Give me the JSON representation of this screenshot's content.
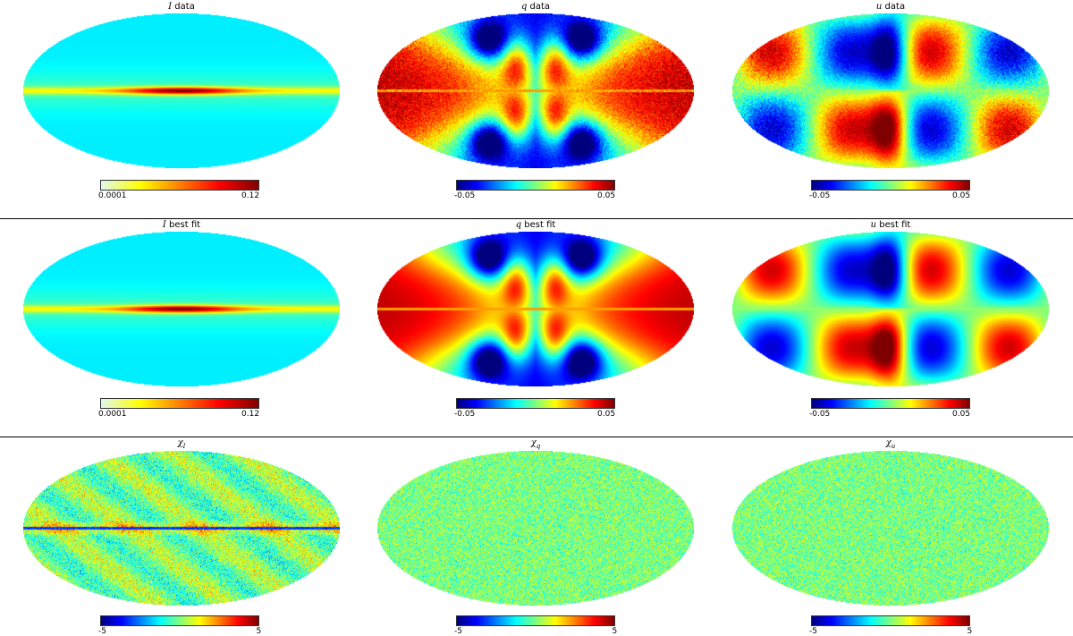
{
  "colors": {
    "jet": [
      "#00007f",
      "#0000ff",
      "#007fff",
      "#00ffff",
      "#7fff7f",
      "#ffff00",
      "#ff7f00",
      "#ff0000",
      "#7f0000"
    ],
    "i_scale": [
      "#e0f8f0",
      "#ffff00",
      "#ff7f00",
      "#ff0000",
      "#7f0000"
    ]
  },
  "chart_data": [
    {
      "type": "heatmap",
      "projection": "mollweide",
      "title_sym": "I",
      "title_rest": " data",
      "field": "I",
      "pattern": "i_data",
      "colorbar": {
        "min": "0.0001",
        "max": "0.12",
        "scale": "i"
      },
      "clim": [
        0.0001,
        0.12
      ]
    },
    {
      "type": "heatmap",
      "projection": "mollweide",
      "title_sym": "q",
      "title_rest": " data",
      "field": "q",
      "pattern": "q_data",
      "colorbar": {
        "min": "-0.05",
        "max": "0.05",
        "scale": "jet"
      },
      "clim": [
        -0.05,
        0.05
      ]
    },
    {
      "type": "heatmap",
      "projection": "mollweide",
      "title_sym": "u",
      "title_rest": " data",
      "field": "u",
      "pattern": "u_data",
      "colorbar": {
        "min": "-0.05",
        "max": "0.05",
        "scale": "jet"
      },
      "clim": [
        -0.05,
        0.05
      ]
    },
    {
      "type": "heatmap",
      "projection": "mollweide",
      "title_sym": "I",
      "title_rest": " best fit",
      "field": "I",
      "pattern": "i_fit",
      "colorbar": {
        "min": "0.0001",
        "max": "0.12",
        "scale": "i"
      },
      "clim": [
        0.0001,
        0.12
      ]
    },
    {
      "type": "heatmap",
      "projection": "mollweide",
      "title_sym": "q",
      "title_rest": " best fit",
      "field": "q",
      "pattern": "q_fit",
      "colorbar": {
        "min": "-0.05",
        "max": "0.05",
        "scale": "jet"
      },
      "clim": [
        -0.05,
        0.05
      ]
    },
    {
      "type": "heatmap",
      "projection": "mollweide",
      "title_sym": "u",
      "title_rest": " best fit",
      "field": "u",
      "pattern": "u_fit",
      "colorbar": {
        "min": "-0.05",
        "max": "0.05",
        "scale": "jet"
      },
      "clim": [
        -0.05,
        0.05
      ]
    },
    {
      "type": "heatmap",
      "projection": "mollweide",
      "title_sym": "χ",
      "title_sub": "I",
      "title_rest": "",
      "field": "chi_I",
      "pattern": "chi_i",
      "colorbar": {
        "min": "-5",
        "max": "5",
        "scale": "jet"
      },
      "clim": [
        -5,
        5
      ]
    },
    {
      "type": "heatmap",
      "projection": "mollweide",
      "title_sym": "χ",
      "title_sub": "q",
      "title_rest": "",
      "field": "chi_q",
      "pattern": "chi_q",
      "colorbar": {
        "min": "-5",
        "max": "5",
        "scale": "jet"
      },
      "clim": [
        -5,
        5
      ]
    },
    {
      "type": "heatmap",
      "projection": "mollweide",
      "title_sym": "χ",
      "title_sub": "u",
      "title_rest": "",
      "field": "chi_u",
      "pattern": "chi_u",
      "colorbar": {
        "min": "-5",
        "max": "5",
        "scale": "jet"
      },
      "clim": [
        -5,
        5
      ]
    }
  ]
}
